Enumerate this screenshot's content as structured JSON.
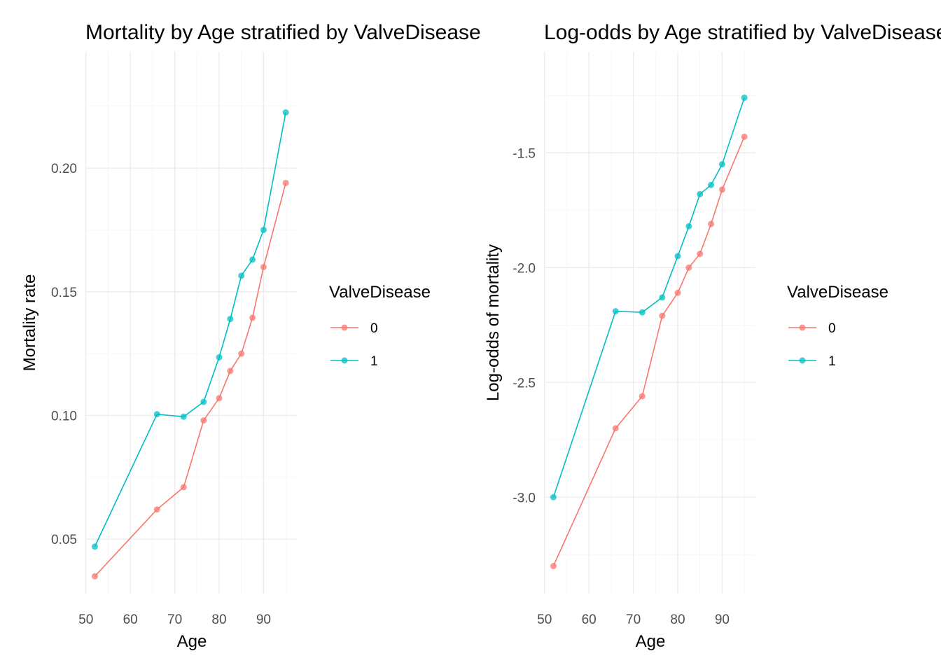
{
  "chart_data": [
    {
      "type": "line",
      "title": "Mortality by Age stratified by ValveDisease",
      "xlabel": "Age",
      "ylabel": "Mortality rate",
      "xlim": [
        50.2,
        97.5
      ],
      "ylim": [
        0.028,
        0.247
      ],
      "x_ticks": [
        50,
        60,
        70,
        80,
        90
      ],
      "x_tick_labels": [
        "50",
        "60",
        "70",
        "80",
        "90"
      ],
      "y_ticks": [
        0.05,
        0.1,
        0.15,
        0.2
      ],
      "y_tick_labels": [
        "0.05",
        "0.10",
        "0.15",
        "0.20"
      ],
      "grid": true,
      "legend": {
        "title": "ValveDisease",
        "position": "right"
      },
      "series": [
        {
          "name": "0",
          "color": "#F8766D",
          "x": [
            52,
            66,
            72,
            76.5,
            80,
            82.5,
            85,
            87.5,
            90,
            95
          ],
          "y": [
            0.035,
            0.062,
            0.071,
            0.098,
            0.107,
            0.118,
            0.125,
            0.1395,
            0.16,
            0.194
          ]
        },
        {
          "name": "1",
          "color": "#00BFC4",
          "x": [
            52,
            66,
            72,
            76.5,
            80,
            82.5,
            85,
            87.5,
            90,
            95
          ],
          "y": [
            0.047,
            0.1005,
            0.0995,
            0.1055,
            0.1235,
            0.139,
            0.1565,
            0.163,
            0.175,
            0.2225
          ]
        }
      ]
    },
    {
      "type": "line",
      "title": "Log-odds by Age stratified by ValveDisease",
      "xlabel": "Age",
      "ylabel": "Log-odds of mortality",
      "xlim": [
        50.2,
        97.5
      ],
      "ylim": [
        -3.42,
        -1.06
      ],
      "x_ticks": [
        50,
        60,
        70,
        80,
        90
      ],
      "x_tick_labels": [
        "50",
        "60",
        "70",
        "80",
        "90"
      ],
      "y_ticks": [
        -3.0,
        -2.5,
        -2.0,
        -1.5
      ],
      "y_tick_labels": [
        "-3.0",
        "-2.5",
        "-2.0",
        "-1.5"
      ],
      "grid": true,
      "legend": {
        "title": "ValveDisease",
        "position": "right"
      },
      "series": [
        {
          "name": "0",
          "color": "#F8766D",
          "x": [
            52,
            66,
            72,
            76.5,
            80,
            82.5,
            85,
            87.5,
            90,
            95
          ],
          "y": [
            -3.3,
            -2.7,
            -2.56,
            -2.21,
            -2.11,
            -2.0,
            -1.94,
            -1.81,
            -1.66,
            -1.43
          ]
        },
        {
          "name": "1",
          "color": "#00BFC4",
          "x": [
            52,
            66,
            72,
            76.5,
            80,
            82.5,
            85,
            87.5,
            90,
            95
          ],
          "y": [
            -3.0,
            -2.19,
            -2.195,
            -2.13,
            -1.95,
            -1.82,
            -1.68,
            -1.64,
            -1.55,
            -1.26
          ]
        }
      ]
    }
  ]
}
